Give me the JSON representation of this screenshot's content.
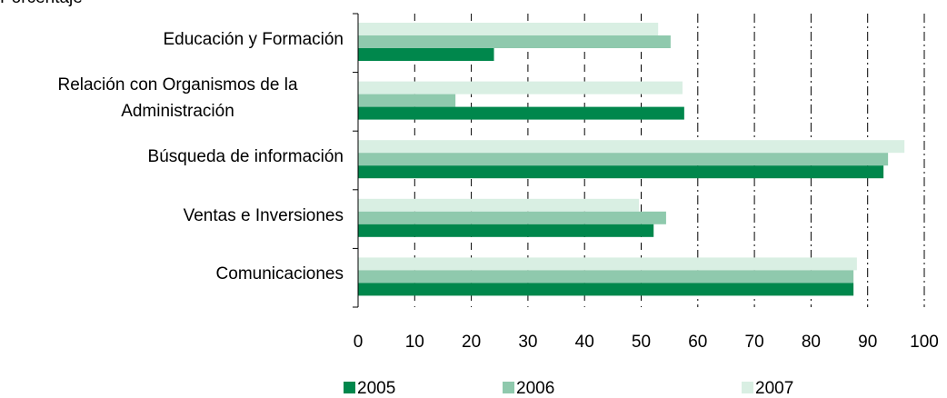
{
  "chart_data": {
    "type": "hbar",
    "title": "Porcentaje",
    "categories": [
      "Educación y Formación",
      "Relación con Organismos de la Administración",
      "Búsqueda de información",
      "Ventas e Inversiones",
      "Comunicaciones"
    ],
    "series": [
      {
        "name": "2005",
        "color": "#00874c",
        "values": [
          24,
          57.6,
          92.8,
          52.2,
          87.5
        ]
      },
      {
        "name": "2006",
        "color": "#8fc9ad",
        "values": [
          55.2,
          17.2,
          93.6,
          54.4,
          87.5
        ]
      },
      {
        "name": "2007",
        "color": "#d9efe3",
        "values": [
          53,
          57.3,
          96.5,
          49.6,
          88.1
        ]
      }
    ],
    "xlim": [
      0,
      100
    ],
    "xticks": [
      0,
      10,
      20,
      30,
      40,
      50,
      60,
      70,
      80,
      90,
      100
    ],
    "grid": true,
    "legend": "bottom"
  }
}
